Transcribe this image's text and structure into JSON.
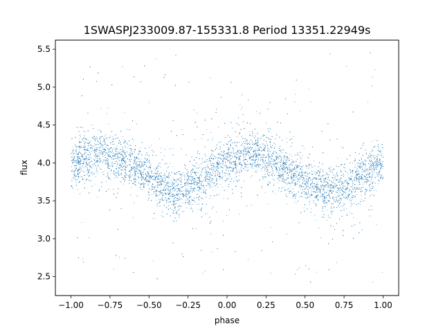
{
  "chart_data": {
    "type": "scatter",
    "title": "1SWASPJ233009.87-155331.8 Period 13351.22949s",
    "xlabel": "phase",
    "ylabel": "flux",
    "xlim": [
      -1.1,
      1.1
    ],
    "ylim": [
      2.25,
      5.62
    ],
    "xticks": [
      -1.0,
      -0.75,
      -0.5,
      -0.25,
      0.0,
      0.25,
      0.5,
      0.75,
      1.0
    ],
    "xtick_labels": [
      "−1.00",
      "−0.75",
      "−0.50",
      "−0.25",
      "0.00",
      "0.25",
      "0.50",
      "0.75",
      "1.00"
    ],
    "yticks": [
      2.5,
      3.0,
      3.5,
      4.0,
      4.5,
      5.0,
      5.5
    ],
    "ytick_labels": [
      "2.5",
      "3.0",
      "3.5",
      "4.0",
      "4.5",
      "5.0",
      "5.5"
    ],
    "grid": false,
    "marker_color": "#1f77b4",
    "series": [
      {
        "phase_range": [
          -1.0,
          1.0
        ],
        "trend": {
          "x": [
            -1.0,
            -0.9,
            -0.8,
            -0.7,
            -0.6,
            -0.5,
            -0.4,
            -0.33,
            -0.25,
            -0.15,
            -0.05,
            0.0,
            0.1,
            0.17,
            0.25,
            0.35,
            0.45,
            0.55,
            0.67,
            0.75,
            0.85,
            0.95,
            1.0
          ],
          "y": [
            4.0,
            4.08,
            4.12,
            4.08,
            3.97,
            3.82,
            3.68,
            3.62,
            3.66,
            3.8,
            3.95,
            4.0,
            4.08,
            4.12,
            4.08,
            3.97,
            3.82,
            3.68,
            3.62,
            3.66,
            3.8,
            3.95,
            4.0
          ]
        },
        "scatter_core": 0.15,
        "y_extent": [
          2.4,
          5.47
        ]
      }
    ]
  }
}
